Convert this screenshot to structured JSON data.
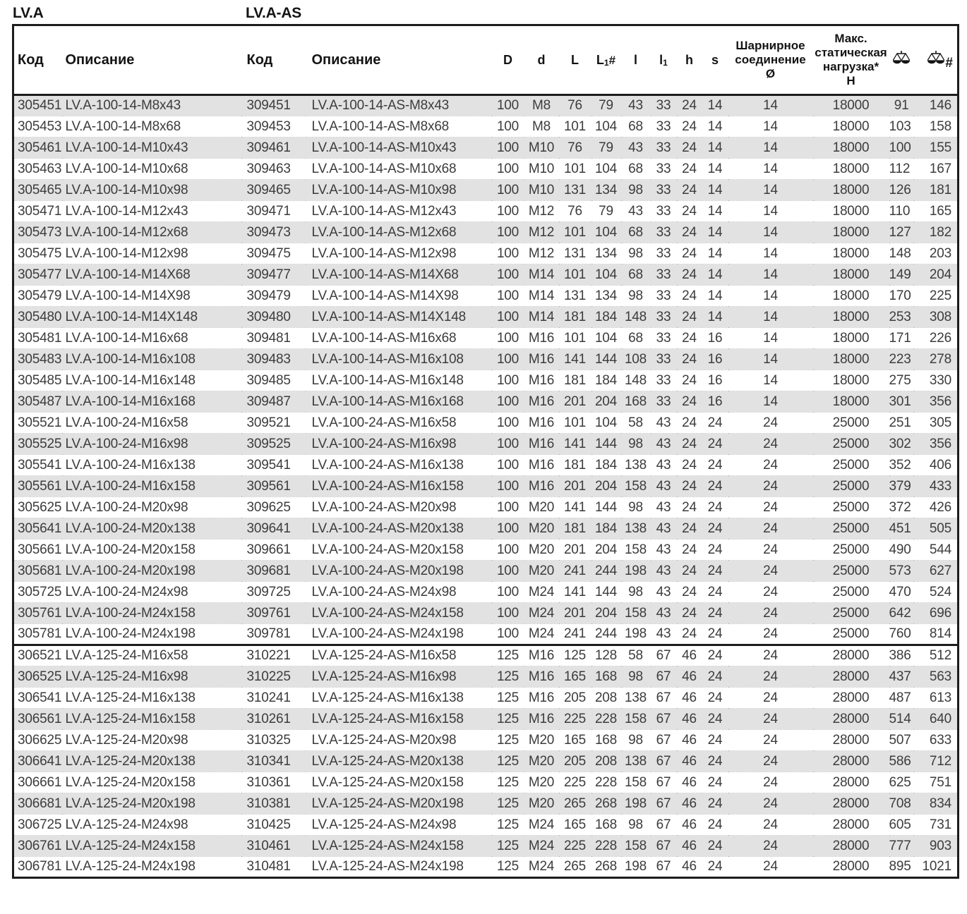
{
  "series": {
    "left": "LV.A",
    "right": "LV.A-AS"
  },
  "table": {
    "headers": {
      "code": "Код",
      "description": "Описание",
      "dims": [
        {
          "text": "D"
        },
        {
          "text": "d"
        },
        {
          "text": "L"
        },
        {
          "text": "L",
          "sub": "1",
          "mark": "#"
        },
        {
          "text": "l"
        },
        {
          "text": "l",
          "sub": "1"
        },
        {
          "text": "h"
        },
        {
          "text": "s"
        }
      ],
      "hinge": "Шарнирное\nсоединение\nØ",
      "max_load": "Макс.\nстатическая\nнагрузка*\nН",
      "weight_icon": "scales-icon",
      "weight_packed_mark": "#"
    },
    "columns": [
      {
        "key": "code-a",
        "align": "left"
      },
      {
        "key": "desc-a",
        "align": "left"
      },
      {
        "key": "code-as",
        "align": "left"
      },
      {
        "key": "desc-as",
        "align": "left"
      },
      {
        "key": "dim-D",
        "align": "center"
      },
      {
        "key": "dim-d",
        "align": "center"
      },
      {
        "key": "dim-L",
        "align": "center"
      },
      {
        "key": "dim-L1",
        "align": "center"
      },
      {
        "key": "dim-l",
        "align": "center"
      },
      {
        "key": "dim-l1",
        "align": "center"
      },
      {
        "key": "dim-h",
        "align": "center"
      },
      {
        "key": "dim-s",
        "align": "center"
      },
      {
        "key": "hinge-diameter",
        "align": "center"
      },
      {
        "key": "max-static-load",
        "align": "center"
      },
      {
        "key": "weight",
        "align": "right"
      },
      {
        "key": "weight-packed",
        "align": "right"
      }
    ],
    "sections": [
      {
        "first_row_shaded": true,
        "rows": [
          [
            "305451",
            "LV.A-100-14-M8x43",
            "309451",
            "LV.A-100-14-AS-M8x43",
            "100",
            "M8",
            "76",
            "79",
            "43",
            "33",
            "24",
            "14",
            "14",
            "18000",
            "91",
            "146"
          ],
          [
            "305453",
            "LV.A-100-14-M8x68",
            "309453",
            "LV.A-100-14-AS-M8x68",
            "100",
            "M8",
            "101",
            "104",
            "68",
            "33",
            "24",
            "14",
            "14",
            "18000",
            "103",
            "158"
          ],
          [
            "305461",
            "LV.A-100-14-M10x43",
            "309461",
            "LV.A-100-14-AS-M10x43",
            "100",
            "M10",
            "76",
            "79",
            "43",
            "33",
            "24",
            "14",
            "14",
            "18000",
            "100",
            "155"
          ],
          [
            "305463",
            "LV.A-100-14-M10x68",
            "309463",
            "LV.A-100-14-AS-M10x68",
            "100",
            "M10",
            "101",
            "104",
            "68",
            "33",
            "24",
            "14",
            "14",
            "18000",
            "112",
            "167"
          ],
          [
            "305465",
            "LV.A-100-14-M10x98",
            "309465",
            "LV.A-100-14-AS-M10x98",
            "100",
            "M10",
            "131",
            "134",
            "98",
            "33",
            "24",
            "14",
            "14",
            "18000",
            "126",
            "181"
          ],
          [
            "305471",
            "LV.A-100-14-M12x43",
            "309471",
            "LV.A-100-14-AS-M12x43",
            "100",
            "M12",
            "76",
            "79",
            "43",
            "33",
            "24",
            "14",
            "14",
            "18000",
            "110",
            "165"
          ],
          [
            "305473",
            "LV.A-100-14-M12x68",
            "309473",
            "LV.A-100-14-AS-M12x68",
            "100",
            "M12",
            "101",
            "104",
            "68",
            "33",
            "24",
            "14",
            "14",
            "18000",
            "127",
            "182"
          ],
          [
            "305475",
            "LV.A-100-14-M12x98",
            "309475",
            "LV.A-100-14-AS-M12x98",
            "100",
            "M12",
            "131",
            "134",
            "98",
            "33",
            "24",
            "14",
            "14",
            "18000",
            "148",
            "203"
          ],
          [
            "305477",
            "LV.A-100-14-M14X68",
            "309477",
            "LV.A-100-14-AS-M14X68",
            "100",
            "M14",
            "101",
            "104",
            "68",
            "33",
            "24",
            "14",
            "14",
            "18000",
            "149",
            "204"
          ],
          [
            "305479",
            "LV.A-100-14-M14X98",
            "309479",
            "LV.A-100-14-AS-M14X98",
            "100",
            "M14",
            "131",
            "134",
            "98",
            "33",
            "24",
            "14",
            "14",
            "18000",
            "170",
            "225"
          ],
          [
            "305480",
            "LV.A-100-14-M14X148",
            "309480",
            "LV.A-100-14-AS-M14X148",
            "100",
            "M14",
            "181",
            "184",
            "148",
            "33",
            "24",
            "14",
            "14",
            "18000",
            "253",
            "308"
          ],
          [
            "305481",
            "LV.A-100-14-M16x68",
            "309481",
            "LV.A-100-14-AS-M16x68",
            "100",
            "M16",
            "101",
            "104",
            "68",
            "33",
            "24",
            "16",
            "14",
            "18000",
            "171",
            "226"
          ],
          [
            "305483",
            "LV.A-100-14-M16x108",
            "309483",
            "LV.A-100-14-AS-M16x108",
            "100",
            "M16",
            "141",
            "144",
            "108",
            "33",
            "24",
            "16",
            "14",
            "18000",
            "223",
            "278"
          ],
          [
            "305485",
            "LV.A-100-14-M16x148",
            "309485",
            "LV.A-100-14-AS-M16x148",
            "100",
            "M16",
            "181",
            "184",
            "148",
            "33",
            "24",
            "16",
            "14",
            "18000",
            "275",
            "330"
          ],
          [
            "305487",
            "LV.A-100-14-M16x168",
            "309487",
            "LV.A-100-14-AS-M16x168",
            "100",
            "M16",
            "201",
            "204",
            "168",
            "33",
            "24",
            "16",
            "14",
            "18000",
            "301",
            "356"
          ],
          [
            "305521",
            "LV.A-100-24-M16x58",
            "309521",
            "LV.A-100-24-AS-M16x58",
            "100",
            "M16",
            "101",
            "104",
            "58",
            "43",
            "24",
            "24",
            "24",
            "25000",
            "251",
            "305"
          ],
          [
            "305525",
            "LV.A-100-24-M16x98",
            "309525",
            "LV.A-100-24-AS-M16x98",
            "100",
            "M16",
            "141",
            "144",
            "98",
            "43",
            "24",
            "24",
            "24",
            "25000",
            "302",
            "356"
          ],
          [
            "305541",
            "LV.A-100-24-M16x138",
            "309541",
            "LV.A-100-24-AS-M16x138",
            "100",
            "M16",
            "181",
            "184",
            "138",
            "43",
            "24",
            "24",
            "24",
            "25000",
            "352",
            "406"
          ],
          [
            "305561",
            "LV.A-100-24-M16x158",
            "309561",
            "LV.A-100-24-AS-M16x158",
            "100",
            "M16",
            "201",
            "204",
            "158",
            "43",
            "24",
            "24",
            "24",
            "25000",
            "379",
            "433"
          ],
          [
            "305625",
            "LV.A-100-24-M20x98",
            "309625",
            "LV.A-100-24-AS-M20x98",
            "100",
            "M20",
            "141",
            "144",
            "98",
            "43",
            "24",
            "24",
            "24",
            "25000",
            "372",
            "426"
          ],
          [
            "305641",
            "LV.A-100-24-M20x138",
            "309641",
            "LV.A-100-24-AS-M20x138",
            "100",
            "M20",
            "181",
            "184",
            "138",
            "43",
            "24",
            "24",
            "24",
            "25000",
            "451",
            "505"
          ],
          [
            "305661",
            "LV.A-100-24-M20x158",
            "309661",
            "LV.A-100-24-AS-M20x158",
            "100",
            "M20",
            "201",
            "204",
            "158",
            "43",
            "24",
            "24",
            "24",
            "25000",
            "490",
            "544"
          ],
          [
            "305681",
            "LV.A-100-24-M20x198",
            "309681",
            "LV.A-100-24-AS-M20x198",
            "100",
            "M20",
            "241",
            "244",
            "198",
            "43",
            "24",
            "24",
            "24",
            "25000",
            "573",
            "627"
          ],
          [
            "305725",
            "LV.A-100-24-M24x98",
            "309725",
            "LV.A-100-24-AS-M24x98",
            "100",
            "M24",
            "141",
            "144",
            "98",
            "43",
            "24",
            "24",
            "24",
            "25000",
            "470",
            "524"
          ],
          [
            "305761",
            "LV.A-100-24-M24x158",
            "309761",
            "LV.A-100-24-AS-M24x158",
            "100",
            "M24",
            "201",
            "204",
            "158",
            "43",
            "24",
            "24",
            "24",
            "25000",
            "642",
            "696"
          ],
          [
            "305781",
            "LV.A-100-24-M24x198",
            "309781",
            "LV.A-100-24-AS-M24x198",
            "100",
            "M24",
            "241",
            "244",
            "198",
            "43",
            "24",
            "24",
            "24",
            "25000",
            "760",
            "814"
          ]
        ]
      },
      {
        "first_row_shaded": false,
        "rows": [
          [
            "306521",
            "LV.A-125-24-M16x58",
            "310221",
            "LV.A-125-24-AS-M16x58",
            "125",
            "M16",
            "125",
            "128",
            "58",
            "67",
            "46",
            "24",
            "24",
            "28000",
            "386",
            "512"
          ],
          [
            "306525",
            "LV.A-125-24-M16x98",
            "310225",
            "LV.A-125-24-AS-M16x98",
            "125",
            "M16",
            "165",
            "168",
            "98",
            "67",
            "46",
            "24",
            "24",
            "28000",
            "437",
            "563"
          ],
          [
            "306541",
            "LV.A-125-24-M16x138",
            "310241",
            "LV.A-125-24-AS-M16x138",
            "125",
            "M16",
            "205",
            "208",
            "138",
            "67",
            "46",
            "24",
            "24",
            "28000",
            "487",
            "613"
          ],
          [
            "306561",
            "LV.A-125-24-M16x158",
            "310261",
            "LV.A-125-24-AS-M16x158",
            "125",
            "M16",
            "225",
            "228",
            "158",
            "67",
            "46",
            "24",
            "24",
            "28000",
            "514",
            "640"
          ],
          [
            "306625",
            "LV.A-125-24-M20x98",
            "310325",
            "LV.A-125-24-AS-M20x98",
            "125",
            "M20",
            "165",
            "168",
            "98",
            "67",
            "46",
            "24",
            "24",
            "28000",
            "507",
            "633"
          ],
          [
            "306641",
            "LV.A-125-24-M20x138",
            "310341",
            "LV.A-125-24-AS-M20x138",
            "125",
            "M20",
            "205",
            "208",
            "138",
            "67",
            "46",
            "24",
            "24",
            "28000",
            "586",
            "712"
          ],
          [
            "306661",
            "LV.A-125-24-M20x158",
            "310361",
            "LV.A-125-24-AS-M20x158",
            "125",
            "M20",
            "225",
            "228",
            "158",
            "67",
            "46",
            "24",
            "24",
            "28000",
            "625",
            "751"
          ],
          [
            "306681",
            "LV.A-125-24-M20x198",
            "310381",
            "LV.A-125-24-AS-M20x198",
            "125",
            "M20",
            "265",
            "268",
            "198",
            "67",
            "46",
            "24",
            "24",
            "28000",
            "708",
            "834"
          ],
          [
            "306725",
            "LV.A-125-24-M24x98",
            "310425",
            "LV.A-125-24-AS-M24x98",
            "125",
            "M24",
            "165",
            "168",
            "98",
            "67",
            "46",
            "24",
            "24",
            "28000",
            "605",
            "731"
          ],
          [
            "306761",
            "LV.A-125-24-M24x158",
            "310461",
            "LV.A-125-24-AS-M24x158",
            "125",
            "M24",
            "225",
            "228",
            "158",
            "67",
            "46",
            "24",
            "24",
            "28000",
            "777",
            "903"
          ],
          [
            "306781",
            "LV.A-125-24-M24x198",
            "310481",
            "LV.A-125-24-AS-M24x198",
            "125",
            "M24",
            "265",
            "268",
            "198",
            "67",
            "46",
            "24",
            "24",
            "28000",
            "895",
            "1021"
          ]
        ]
      }
    ]
  }
}
